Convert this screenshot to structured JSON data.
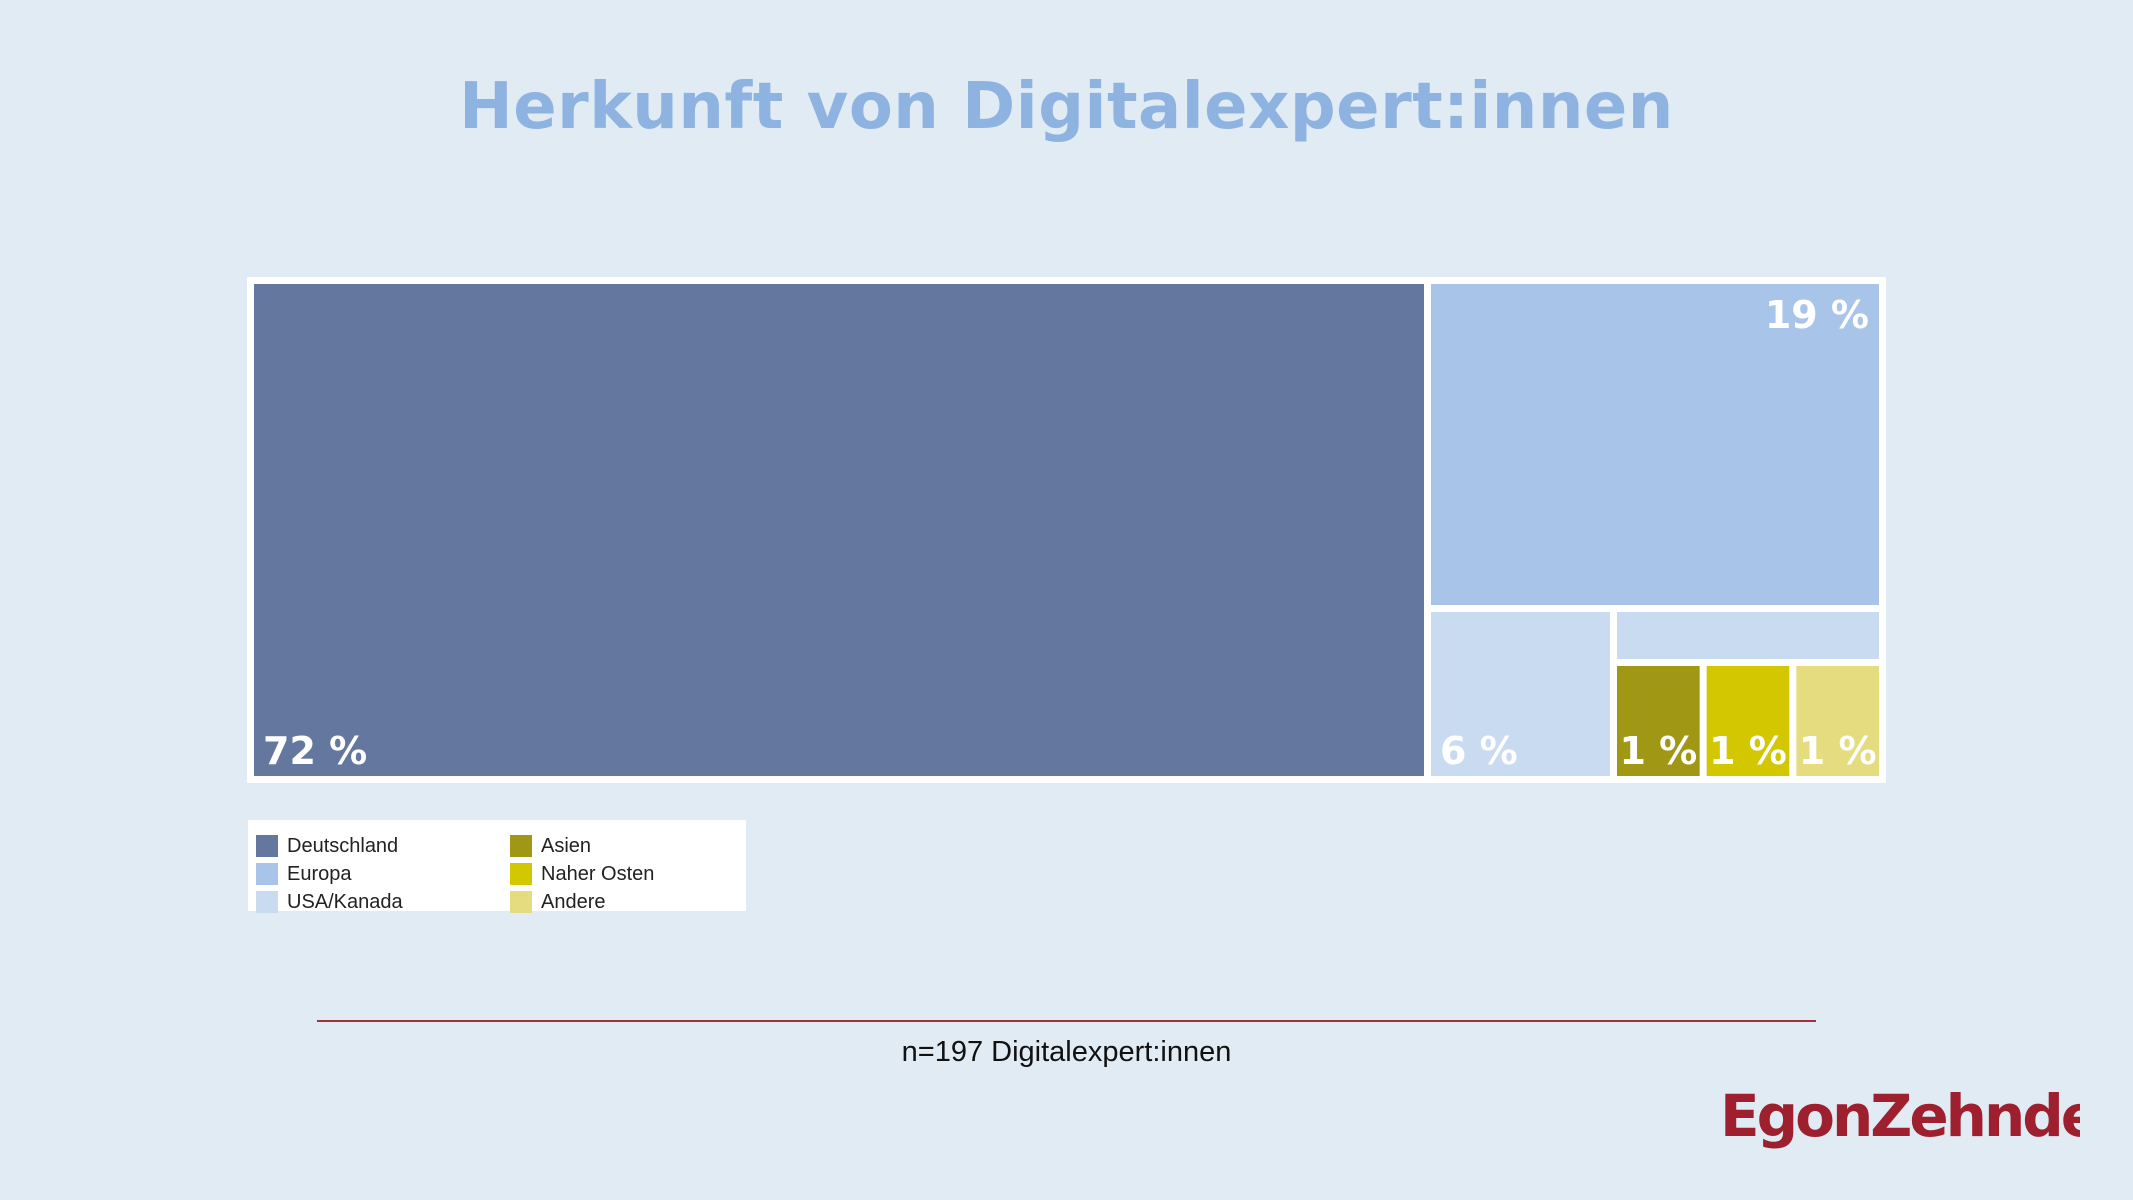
{
  "title": "Herkunft von Digitalexpert:innen",
  "chart_data": {
    "type": "treemap",
    "title": "Herkunft von Digitalexpert:innen",
    "categories": [
      "Deutschland",
      "Europa",
      "USA/Kanada",
      "Asien",
      "Naher Osten",
      "Andere"
    ],
    "values": [
      72,
      19,
      6,
      1,
      1,
      1
    ],
    "labels": [
      "72 %",
      "19 %",
      "6 %",
      "1 %",
      "1 %",
      "1 %"
    ],
    "colors": [
      "#64779f",
      "#a8c5e9",
      "#c9dbf1",
      "#a09714",
      "#d2c700",
      "#e4dc7e"
    ],
    "legend_placement": "bottom-left"
  },
  "legend": [
    {
      "label": "Deutschland",
      "color": "#64779f"
    },
    {
      "label": "Europa",
      "color": "#a8c5e9"
    },
    {
      "label": "USA/Kanada",
      "color": "#c9dbf1"
    },
    {
      "label": "Asien",
      "color": "#a09714"
    },
    {
      "label": "Naher Osten",
      "color": "#d2c700"
    },
    {
      "label": "Andere",
      "color": "#e4dc7e"
    }
  ],
  "footnote": "n=197 Digitalexpert:innen",
  "logo": {
    "text": "EgonZehnder",
    "color": "#9e1f2e"
  }
}
